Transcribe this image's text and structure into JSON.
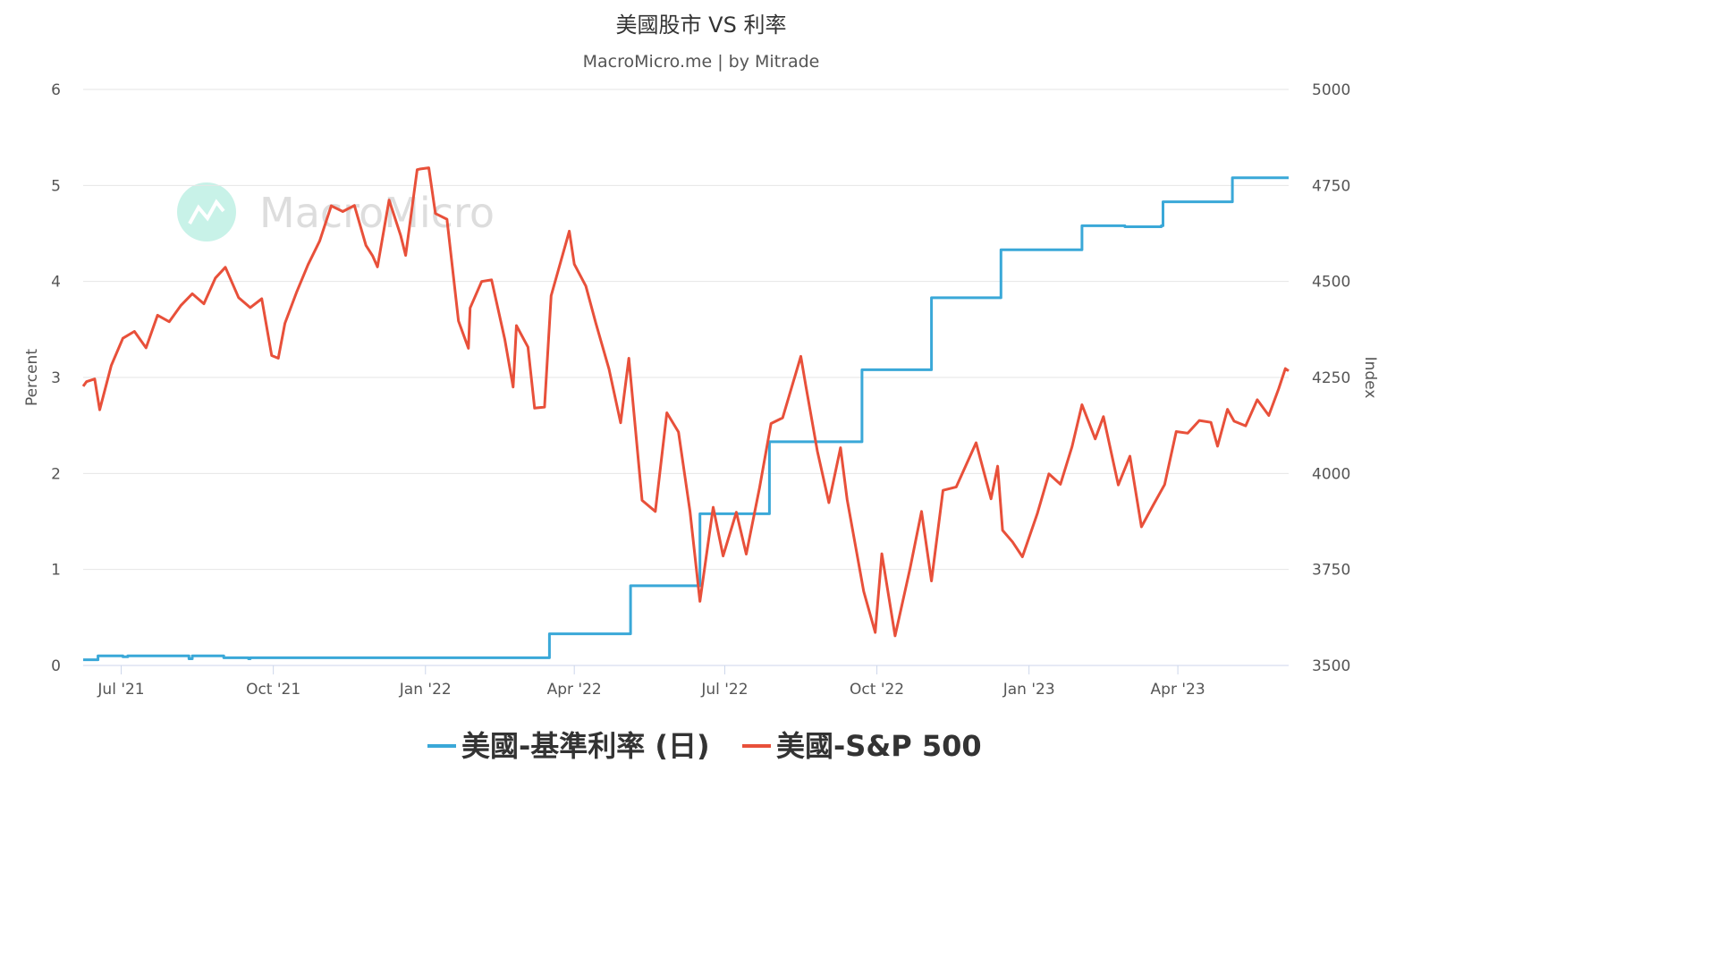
{
  "chart_data": {
    "type": "line",
    "title": "美國股市 VS 利率",
    "subtitle": "MacroMicro.me | by Mitrade",
    "watermark": "MacroMicro",
    "legend_position": "bottom",
    "grid": true,
    "x_ticks": [
      {
        "label": "Jul '21",
        "date": "2021-07-01"
      },
      {
        "label": "Oct '21",
        "date": "2021-10-01"
      },
      {
        "label": "Jan '22",
        "date": "2022-01-01"
      },
      {
        "label": "Apr '22",
        "date": "2022-04-01"
      },
      {
        "label": "Jul '22",
        "date": "2022-07-01"
      },
      {
        "label": "Oct '22",
        "date": "2022-10-01"
      },
      {
        "label": "Jan '23",
        "date": "2023-01-01"
      },
      {
        "label": "Apr '23",
        "date": "2023-04-01"
      }
    ],
    "xlim": [
      "2021-06-08",
      "2023-06-07"
    ],
    "y_left": {
      "label": "Percent",
      "lim": [
        0,
        6
      ],
      "ticks": [
        0,
        1,
        2,
        3,
        4,
        5,
        6
      ]
    },
    "y_right": {
      "label": "Index",
      "lim": [
        3500,
        5000
      ],
      "ticks": [
        3500,
        3750,
        4000,
        4250,
        4500,
        4750,
        5000
      ]
    },
    "series": [
      {
        "name": "美國-基準利率 (日)",
        "axis": "left",
        "color": "#3aa8d8",
        "step": true,
        "points": [
          [
            "2021-06-08",
            0.06
          ],
          [
            "2021-06-17",
            0.1
          ],
          [
            "2021-07-01",
            0.1
          ],
          [
            "2021-07-02",
            0.09
          ],
          [
            "2021-07-05",
            0.1
          ],
          [
            "2021-08-10",
            0.1
          ],
          [
            "2021-08-11",
            0.07
          ],
          [
            "2021-08-13",
            0.1
          ],
          [
            "2021-08-31",
            0.1
          ],
          [
            "2021-09-01",
            0.08
          ],
          [
            "2021-09-15",
            0.08
          ],
          [
            "2021-09-16",
            0.07
          ],
          [
            "2021-09-17",
            0.08
          ],
          [
            "2022-03-16",
            0.08
          ],
          [
            "2022-03-17",
            0.33
          ],
          [
            "2022-05-04",
            0.33
          ],
          [
            "2022-05-05",
            0.83
          ],
          [
            "2022-06-15",
            0.83
          ],
          [
            "2022-06-16",
            1.58
          ],
          [
            "2022-07-27",
            1.58
          ],
          [
            "2022-07-28",
            2.33
          ],
          [
            "2022-09-21",
            2.33
          ],
          [
            "2022-09-22",
            3.08
          ],
          [
            "2022-11-02",
            3.08
          ],
          [
            "2022-11-03",
            3.83
          ],
          [
            "2022-12-14",
            3.83
          ],
          [
            "2022-12-15",
            4.33
          ],
          [
            "2023-02-01",
            4.33
          ],
          [
            "2023-02-02",
            4.58
          ],
          [
            "2023-02-28",
            4.57
          ],
          [
            "2023-03-10",
            4.57
          ],
          [
            "2023-03-22",
            4.58
          ],
          [
            "2023-03-23",
            4.83
          ],
          [
            "2023-05-03",
            4.83
          ],
          [
            "2023-05-04",
            5.08
          ],
          [
            "2023-06-07",
            5.08
          ]
        ]
      },
      {
        "name": "美國-S&P 500",
        "axis": "right",
        "color": "#e8503a",
        "step": false,
        "points": [
          [
            "2021-06-08",
            4227
          ],
          [
            "2021-06-10",
            4239
          ],
          [
            "2021-06-15",
            4246
          ],
          [
            "2021-06-18",
            4166
          ],
          [
            "2021-06-25",
            4281
          ],
          [
            "2021-07-02",
            4352
          ],
          [
            "2021-07-09",
            4370
          ],
          [
            "2021-07-16",
            4327
          ],
          [
            "2021-07-23",
            4412
          ],
          [
            "2021-07-30",
            4395
          ],
          [
            "2021-08-06",
            4437
          ],
          [
            "2021-08-13",
            4468
          ],
          [
            "2021-08-20",
            4442
          ],
          [
            "2021-08-27",
            4509
          ],
          [
            "2021-09-02",
            4537
          ],
          [
            "2021-09-10",
            4458
          ],
          [
            "2021-09-17",
            4432
          ],
          [
            "2021-09-24",
            4455
          ],
          [
            "2021-09-30",
            4307
          ],
          [
            "2021-10-04",
            4300
          ],
          [
            "2021-10-08",
            4391
          ],
          [
            "2021-10-15",
            4471
          ],
          [
            "2021-10-22",
            4544
          ],
          [
            "2021-10-29",
            4605
          ],
          [
            "2021-11-05",
            4697
          ],
          [
            "2021-11-12",
            4682
          ],
          [
            "2021-11-19",
            4698
          ],
          [
            "2021-11-26",
            4594
          ],
          [
            "2021-11-30",
            4567
          ],
          [
            "2021-12-03",
            4538
          ],
          [
            "2021-12-10",
            4712
          ],
          [
            "2021-12-17",
            4620
          ],
          [
            "2021-12-20",
            4568
          ],
          [
            "2021-12-27",
            4791
          ],
          [
            "2021-12-29",
            4793
          ],
          [
            "2022-01-03",
            4796
          ],
          [
            "2022-01-07",
            4677
          ],
          [
            "2022-01-14",
            4662
          ],
          [
            "2022-01-21",
            4397
          ],
          [
            "2022-01-27",
            4326
          ],
          [
            "2022-01-28",
            4431
          ],
          [
            "2022-02-04",
            4500
          ],
          [
            "2022-02-10",
            4504
          ],
          [
            "2022-02-18",
            4349
          ],
          [
            "2022-02-23",
            4225
          ],
          [
            "2022-02-25",
            4385
          ],
          [
            "2022-03-04",
            4329
          ],
          [
            "2022-03-08",
            4170
          ],
          [
            "2022-03-14",
            4173
          ],
          [
            "2022-03-18",
            4463
          ],
          [
            "2022-03-29",
            4631
          ],
          [
            "2022-04-01",
            4545
          ],
          [
            "2022-04-08",
            4488
          ],
          [
            "2022-04-14",
            4392
          ],
          [
            "2022-04-22",
            4272
          ],
          [
            "2022-04-29",
            4132
          ],
          [
            "2022-05-04",
            4300
          ],
          [
            "2022-05-12",
            3930
          ],
          [
            "2022-05-20",
            3901
          ],
          [
            "2022-05-27",
            4158
          ],
          [
            "2022-06-03",
            4108
          ],
          [
            "2022-06-10",
            3901
          ],
          [
            "2022-06-16",
            3667
          ],
          [
            "2022-06-24",
            3912
          ],
          [
            "2022-06-30",
            3785
          ],
          [
            "2022-07-08",
            3899
          ],
          [
            "2022-07-14",
            3790
          ],
          [
            "2022-07-22",
            3962
          ],
          [
            "2022-07-29",
            4130
          ],
          [
            "2022-08-05",
            4145
          ],
          [
            "2022-08-16",
            4305
          ],
          [
            "2022-08-19",
            4228
          ],
          [
            "2022-08-26",
            4058
          ],
          [
            "2022-09-02",
            3924
          ],
          [
            "2022-09-09",
            4067
          ],
          [
            "2022-09-13",
            3932
          ],
          [
            "2022-09-23",
            3693
          ],
          [
            "2022-09-30",
            3586
          ],
          [
            "2022-10-04",
            3791
          ],
          [
            "2022-10-12",
            3577
          ],
          [
            "2022-10-21",
            3752
          ],
          [
            "2022-10-28",
            3901
          ],
          [
            "2022-11-03",
            3720
          ],
          [
            "2022-11-10",
            3956
          ],
          [
            "2022-11-18",
            3965
          ],
          [
            "2022-11-30",
            4080
          ],
          [
            "2022-12-09",
            3934
          ],
          [
            "2022-12-13",
            4019
          ],
          [
            "2022-12-16",
            3852
          ],
          [
            "2022-12-22",
            3822
          ],
          [
            "2022-12-28",
            3783
          ],
          [
            "2023-01-06",
            3895
          ],
          [
            "2023-01-13",
            3999
          ],
          [
            "2023-01-20",
            3972
          ],
          [
            "2023-01-27",
            4070
          ],
          [
            "2023-02-02",
            4179
          ],
          [
            "2023-02-10",
            4090
          ],
          [
            "2023-02-15",
            4148
          ],
          [
            "2023-02-24",
            3970
          ],
          [
            "2023-03-03",
            4045
          ],
          [
            "2023-03-10",
            3861
          ],
          [
            "2023-03-17",
            3917
          ],
          [
            "2023-03-24",
            3971
          ],
          [
            "2023-03-31",
            4109
          ],
          [
            "2023-04-07",
            4105
          ],
          [
            "2023-04-14",
            4138
          ],
          [
            "2023-04-21",
            4133
          ],
          [
            "2023-04-25",
            4071
          ],
          [
            "2023-05-01",
            4167
          ],
          [
            "2023-05-05",
            4136
          ],
          [
            "2023-05-12",
            4124
          ],
          [
            "2023-05-19",
            4192
          ],
          [
            "2023-05-26",
            4151
          ],
          [
            "2023-06-01",
            4221
          ],
          [
            "2023-06-05",
            4273
          ],
          [
            "2023-06-07",
            4267
          ]
        ]
      }
    ]
  }
}
